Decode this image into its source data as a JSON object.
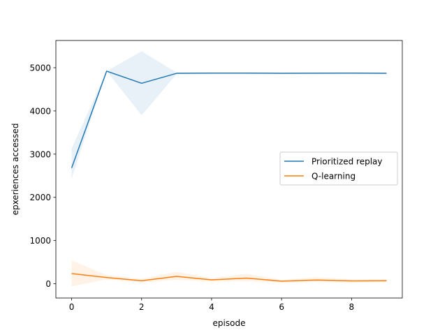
{
  "chart_data": {
    "type": "line",
    "title": "",
    "xlabel": "episode",
    "ylabel": "epxeriences accessed",
    "xlim": [
      -0.45,
      9.45
    ],
    "ylim": [
      -330,
      5630
    ],
    "x_ticks": [
      0,
      2,
      4,
      6,
      8
    ],
    "y_ticks": [
      0,
      1000,
      2000,
      3000,
      4000,
      5000
    ],
    "grid": false,
    "legend_position": "center-right",
    "x": [
      0,
      1,
      2,
      3,
      4,
      5,
      6,
      7,
      8,
      9
    ],
    "series": [
      {
        "name": "Prioritized replay",
        "color": "#1f77b4",
        "values": [
          2680,
          4920,
          4640,
          4870,
          4875,
          4875,
          4870,
          4872,
          4875,
          4870
        ],
        "band_low": [
          2430,
          4920,
          3900,
          4850,
          4860,
          4860,
          4855,
          4858,
          4860,
          4855
        ],
        "band_high": [
          3130,
          4920,
          5380,
          4890,
          4890,
          4890,
          4885,
          4886,
          4890,
          4885
        ]
      },
      {
        "name": "Q-learning",
        "color": "#ff7f0e",
        "values": [
          235,
          145,
          70,
          170,
          90,
          130,
          60,
          85,
          65,
          70
        ],
        "band_low": [
          -60,
          100,
          30,
          90,
          50,
          60,
          30,
          40,
          30,
          35
        ],
        "band_high": [
          540,
          200,
          110,
          280,
          130,
          230,
          90,
          150,
          100,
          110
        ]
      }
    ]
  }
}
